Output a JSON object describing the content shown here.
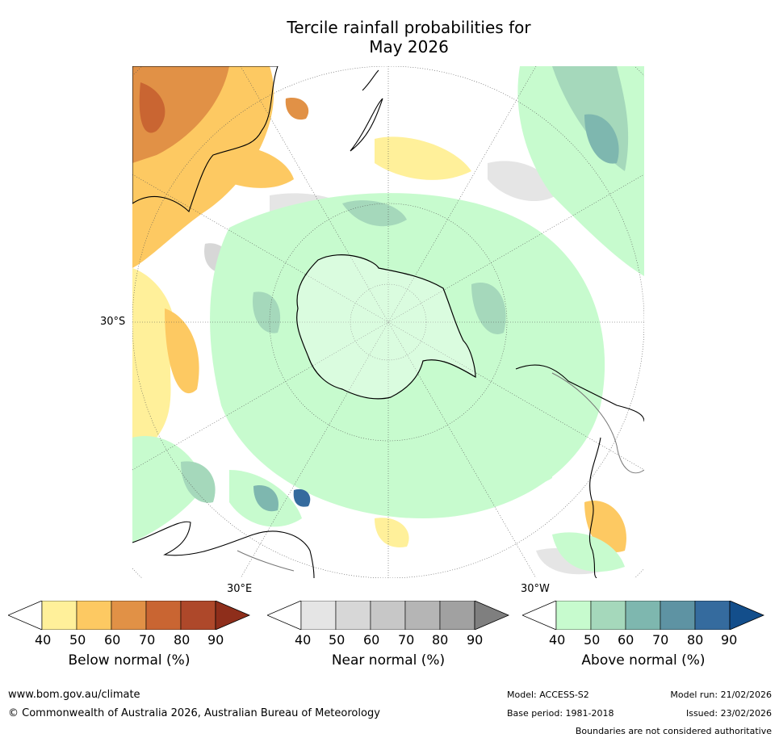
{
  "title": {
    "line1": "Tercile rainfall probabilities for",
    "line2": "May 2026"
  },
  "map": {
    "lat_label": "30°S",
    "lon_labels": [
      "30°E",
      "30°W"
    ]
  },
  "colorbars": [
    {
      "title": "Below normal (%)",
      "ticks": [
        "40",
        "50",
        "60",
        "70",
        "80",
        "90"
      ],
      "colors": [
        "#fff09a",
        "#fdc962",
        "#e19146",
        "#c96532",
        "#ae482a",
        "#8e2e1b"
      ]
    },
    {
      "title": "Near normal (%)",
      "ticks": [
        "40",
        "50",
        "60",
        "70",
        "80",
        "90"
      ],
      "colors": [
        "#e5e5e5",
        "#d7d7d7",
        "#c7c7c7",
        "#b5b5b5",
        "#a1a1a1",
        "#7f7f7f"
      ]
    },
    {
      "title": "Above normal (%)",
      "ticks": [
        "40",
        "50",
        "60",
        "70",
        "80",
        "90"
      ],
      "colors": [
        "#c7fbce",
        "#a5d8bb",
        "#7eb7af",
        "#5e93a3",
        "#356b9e",
        "#134e8b"
      ]
    }
  ],
  "footer": {
    "url": "www.bom.gov.au/climate",
    "copyright": "© Commonwealth of Australia 2026, Australian Bureau of Meteorology",
    "model": "Model: ACCESS-S2",
    "base_period": "Base period: 1981-2018",
    "model_run": "Model run: 21/02/2026",
    "issued": "Issued: 23/02/2026",
    "disclaimer": "Boundaries are not considered authoritative"
  }
}
